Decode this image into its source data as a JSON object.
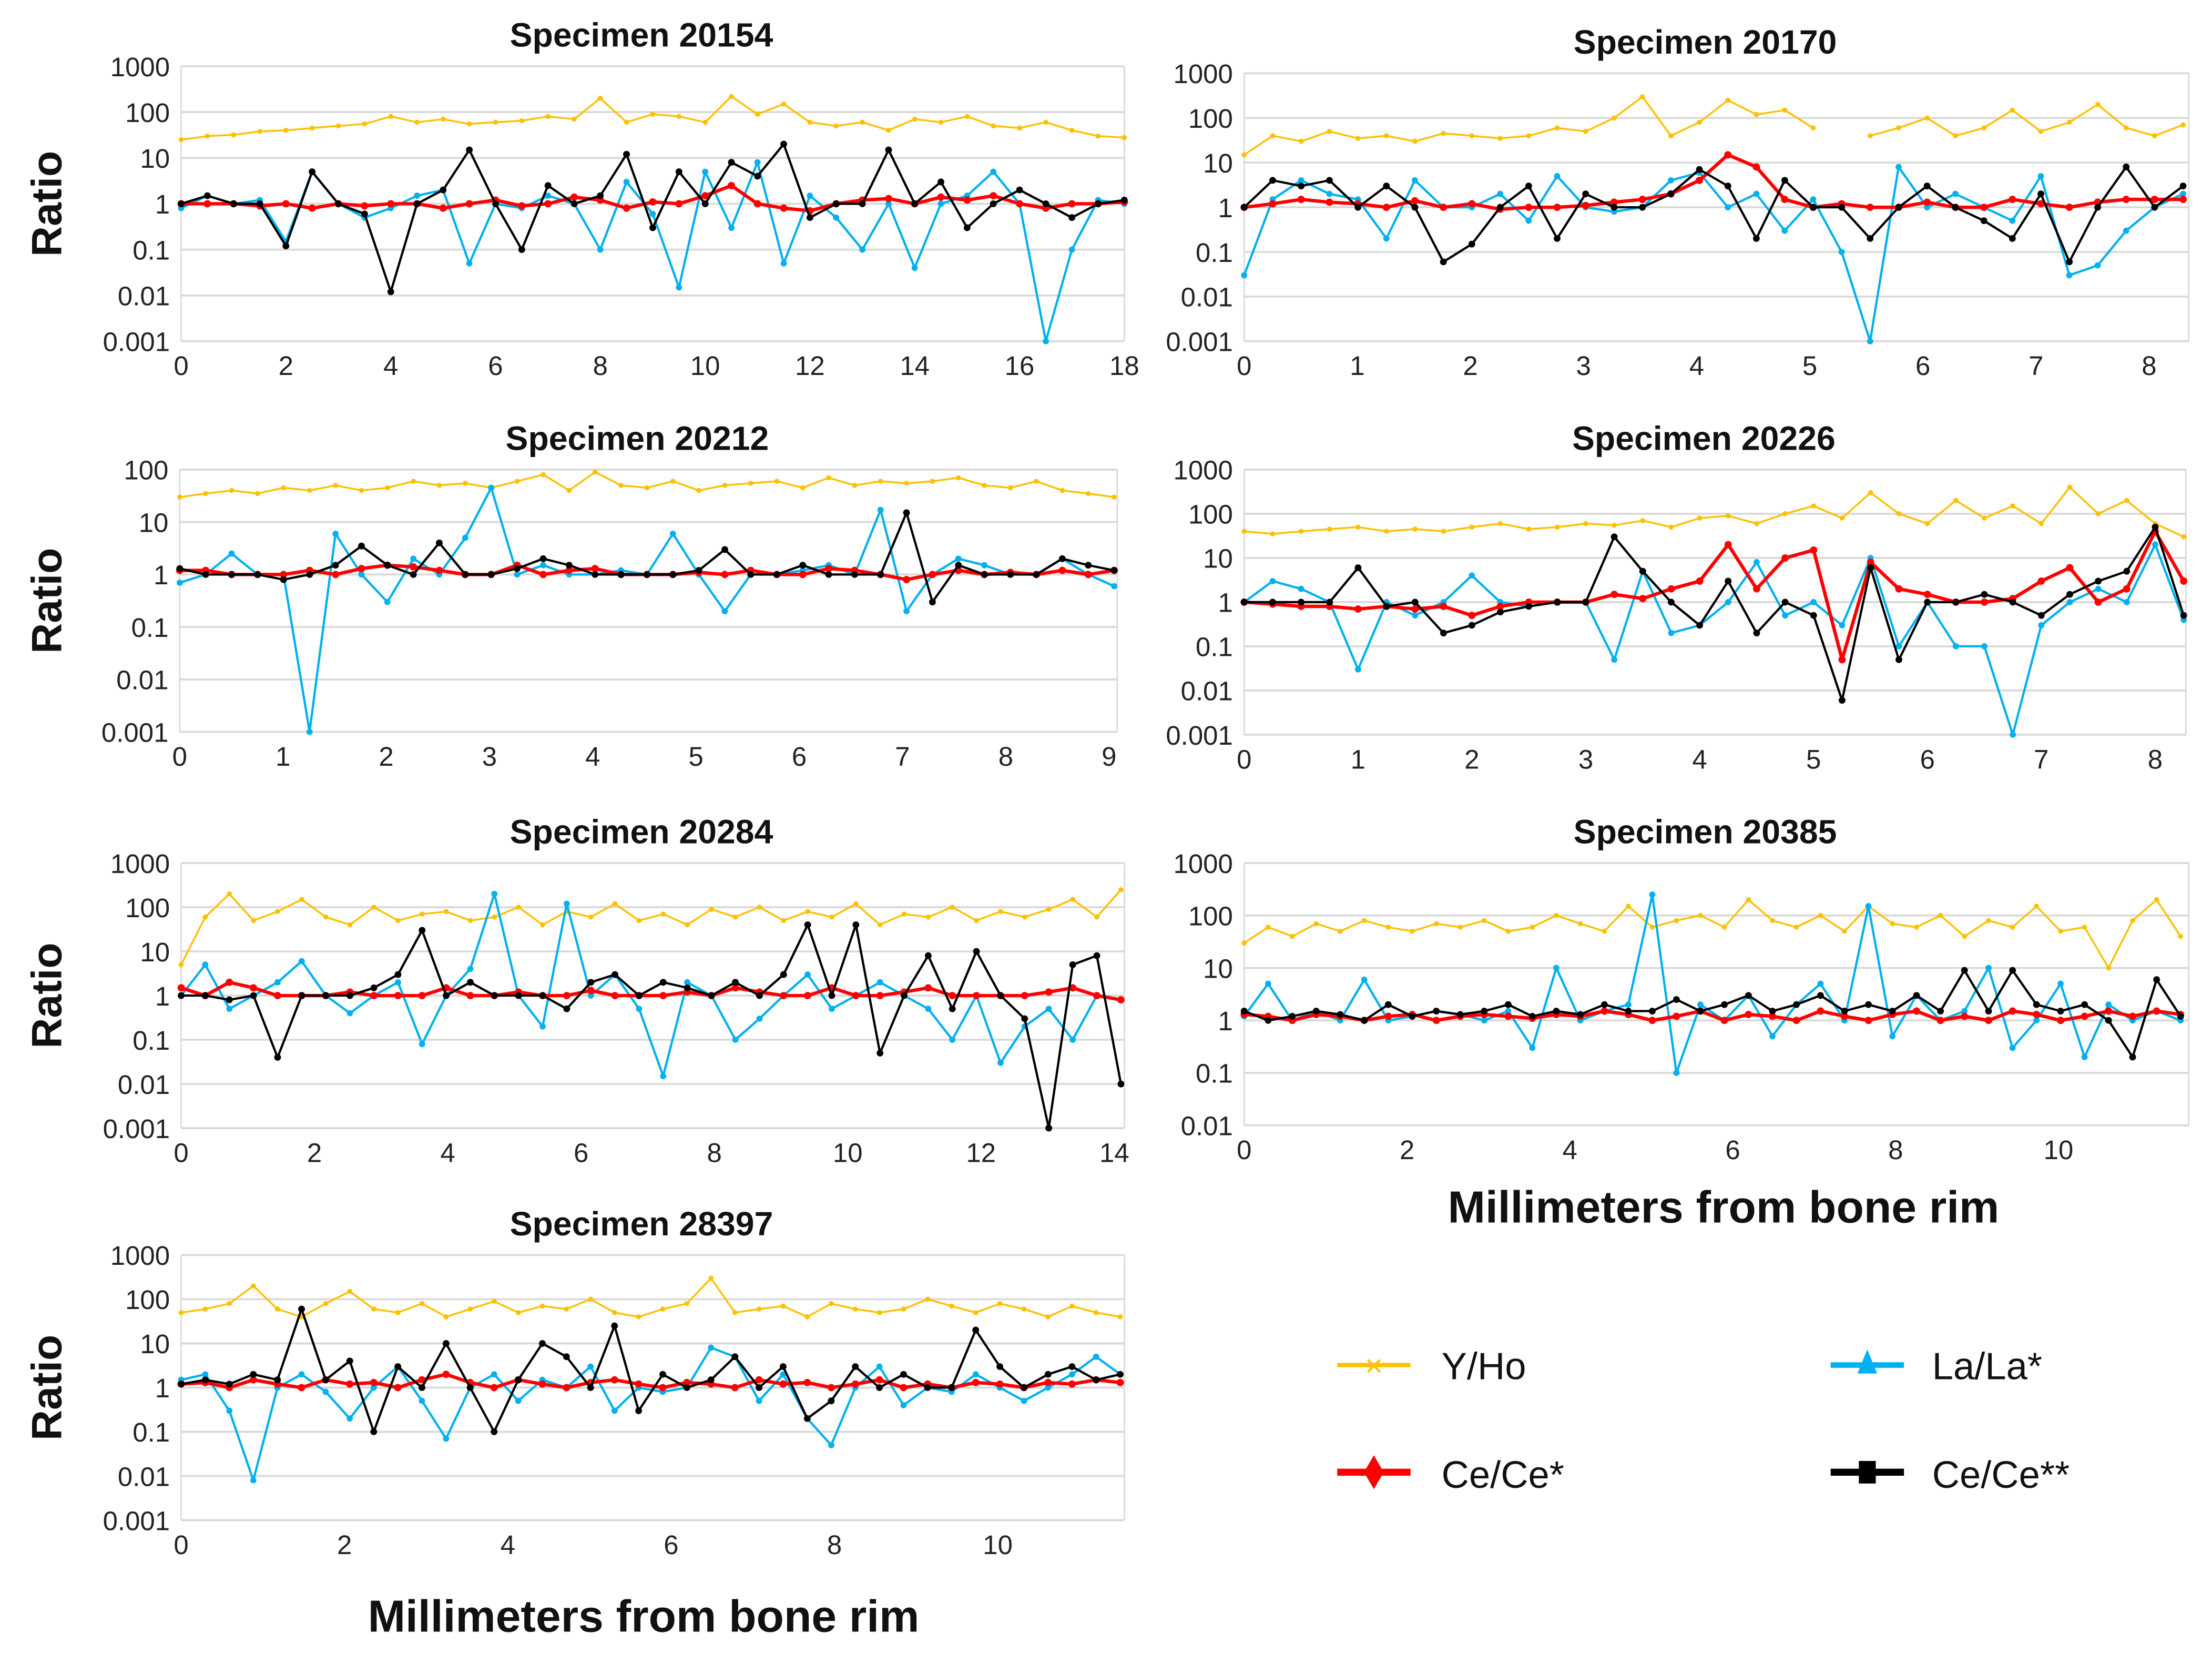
{
  "legend": {
    "yho": "Y/Ho",
    "la": "La/La*",
    "ce": "Ce/Ce*",
    "ce2": "Ce/Ce**"
  },
  "colors": {
    "yho": "#FFC000",
    "la": "#00B0F0",
    "ce": "#FF0000",
    "ce2": "#000000"
  },
  "x_axis_label": "Millimeters from bone rim",
  "y_axis_label": "Ratio",
  "chart_data": [
    {
      "type": "line",
      "title": "Specimen 20154",
      "ylabel": "Ratio",
      "yscale": "log",
      "ylim": [
        0.001,
        1000
      ],
      "xlim": [
        0,
        18
      ],
      "xticks": [
        0,
        2,
        4,
        6,
        8,
        10,
        12,
        14,
        16,
        18
      ],
      "yticks": [
        "0.001",
        "0.01",
        "0.1",
        "1",
        "10",
        "100",
        "1000"
      ],
      "x_end": 18,
      "series": {
        "yho": [
          25,
          30,
          32,
          38,
          40,
          45,
          50,
          55,
          80,
          60,
          70,
          55,
          60,
          65,
          80,
          70,
          200,
          60,
          90,
          80,
          60,
          220,
          90,
          150,
          60,
          50,
          60,
          40,
          70,
          60,
          80,
          50,
          45,
          60,
          40,
          30,
          28
        ],
        "la": [
          0.8,
          1.5,
          1,
          1.2,
          0.15,
          5,
          1,
          0.5,
          0.8,
          1.5,
          2,
          0.05,
          1,
          0.8,
          1.5,
          1,
          0.1,
          3,
          0.6,
          0.015,
          5,
          0.3,
          8,
          0.05,
          1.5,
          0.5,
          0.1,
          1,
          0.04,
          1,
          1.5,
          5,
          1,
          0.0003,
          0.1,
          1.2,
          1
        ],
        "ce": [
          1,
          1,
          1,
          0.9,
          1,
          0.8,
          1,
          0.9,
          1,
          1,
          0.8,
          1,
          1.2,
          0.9,
          1,
          1.4,
          1.2,
          0.8,
          1.1,
          1,
          1.5,
          2.5,
          1,
          0.8,
          0.7,
          1,
          1.2,
          1.3,
          1,
          1.4,
          1.2,
          1.5,
          1,
          0.8,
          1,
          1,
          1.1
        ],
        "ce2": [
          1,
          1.5,
          1,
          1,
          0.12,
          5,
          1,
          0.6,
          0.012,
          1,
          2,
          15,
          1,
          0.1,
          2.5,
          1,
          1.5,
          12,
          0.3,
          5,
          1,
          8,
          4,
          20,
          0.5,
          1,
          1,
          15,
          1,
          3,
          0.3,
          1,
          2,
          1,
          0.5,
          1,
          1.2
        ]
      }
    },
    {
      "type": "line",
      "title": "Specimen 20170",
      "ylabel": "",
      "yscale": "log",
      "ylim": [
        0.001,
        1000
      ],
      "xlim": [
        0,
        8.35
      ],
      "xticks": [
        0,
        1,
        2,
        3,
        4,
        5,
        6,
        7,
        8
      ],
      "yticks": [
        "0.001",
        "0.01",
        "0.1",
        "1",
        "10",
        "100",
        "1000"
      ],
      "x_end": 8.3,
      "series": {
        "yho": [
          15,
          40,
          30,
          50,
          35,
          40,
          30,
          45,
          40,
          35,
          40,
          60,
          50,
          100,
          300,
          40,
          80,
          250,
          120,
          150,
          60,
          null,
          40,
          60,
          100,
          40,
          60,
          150,
          50,
          80,
          200,
          60,
          40,
          70
        ],
        "la": [
          0.03,
          1.5,
          4,
          2,
          1.5,
          0.2,
          4,
          1,
          1,
          2,
          0.5,
          5,
          1,
          0.8,
          1,
          4,
          6,
          1,
          2,
          0.3,
          1.5,
          0.1,
          0.001,
          8,
          1,
          2,
          1,
          0.5,
          5,
          0.03,
          0.05,
          0.3,
          1,
          2
        ],
        "ce": [
          1,
          1.2,
          1.5,
          1.3,
          1.2,
          1,
          1.4,
          1,
          1.2,
          0.9,
          1,
          1,
          1.1,
          1.3,
          1.5,
          2,
          4,
          15,
          8,
          1.5,
          1,
          1.2,
          1,
          1,
          1.3,
          1,
          1,
          1.5,
          1.2,
          1,
          1.3,
          1.5,
          1.5,
          1.5
        ],
        "ce2": [
          1,
          4,
          3,
          4,
          1,
          3,
          1,
          0.06,
          0.15,
          1,
          3,
          0.2,
          2,
          1,
          1,
          2,
          7,
          3,
          0.2,
          4,
          1,
          1,
          0.2,
          1,
          3,
          1,
          0.5,
          0.2,
          2,
          0.06,
          1,
          8,
          1,
          3
        ]
      }
    },
    {
      "type": "line",
      "title": "Specimen 20212",
      "ylabel": "Ratio",
      "yscale": "log",
      "ylim": [
        0.001,
        100
      ],
      "xlim": [
        0,
        9.08
      ],
      "xticks": [
        0,
        1,
        2,
        3,
        4,
        5,
        6,
        7,
        8,
        9
      ],
      "yticks": [
        "0.001",
        "0.01",
        "0.1",
        "1",
        "10",
        "100"
      ],
      "x_end": 9.05,
      "series": {
        "yho": [
          30,
          35,
          40,
          35,
          45,
          40,
          50,
          40,
          45,
          60,
          50,
          55,
          45,
          60,
          80,
          40,
          90,
          50,
          45,
          60,
          40,
          50,
          55,
          60,
          45,
          70,
          50,
          60,
          55,
          60,
          70,
          50,
          45,
          60,
          40,
          35,
          30
        ],
        "la": [
          0.7,
          1,
          2.5,
          1,
          1,
          0.0002,
          6,
          1,
          0.3,
          2,
          1,
          5,
          45,
          1,
          1.5,
          1,
          1,
          1.2,
          1,
          6,
          1,
          0.2,
          1,
          1,
          1.2,
          1.5,
          1,
          17,
          0.2,
          1,
          2,
          1.5,
          1,
          1,
          2,
          1,
          0.6
        ],
        "ce": [
          1.2,
          1.2,
          1,
          1,
          1,
          1.2,
          1,
          1.3,
          1.5,
          1.4,
          1.2,
          1,
          1,
          1.5,
          1,
          1.2,
          1.3,
          1,
          1,
          1,
          1.1,
          1,
          1.2,
          1,
          1,
          1.3,
          1.2,
          1,
          0.8,
          1,
          1.2,
          1,
          1.1,
          1,
          1.2,
          1,
          1.2
        ],
        "ce2": [
          1.3,
          1,
          1,
          1,
          0.8,
          1,
          1.5,
          3.5,
          1.5,
          1,
          4,
          1,
          1,
          1.3,
          2,
          1.5,
          1,
          1,
          1,
          1,
          1.2,
          3,
          1,
          1,
          1.5,
          1,
          1,
          1,
          15,
          0.3,
          1.5,
          1,
          1,
          1,
          2,
          1.5,
          1.2
        ]
      }
    },
    {
      "type": "line",
      "title": "Specimen 20226",
      "ylabel": "",
      "yscale": "log",
      "ylim": [
        0.001,
        1000
      ],
      "xlim": [
        0,
        8.27
      ],
      "xticks": [
        0,
        1,
        2,
        3,
        4,
        5,
        6,
        7,
        8
      ],
      "yticks": [
        "0.001",
        "0.01",
        "0.1",
        "1",
        "10",
        "100",
        "1000"
      ],
      "x_end": 8.25,
      "series": {
        "yho": [
          40,
          35,
          40,
          45,
          50,
          40,
          45,
          40,
          50,
          60,
          45,
          50,
          60,
          55,
          70,
          50,
          80,
          90,
          60,
          100,
          150,
          80,
          300,
          100,
          60,
          200,
          80,
          150,
          60,
          400,
          100,
          200,
          60,
          30
        ],
        "la": [
          1,
          3,
          2,
          1,
          0.03,
          1,
          0.5,
          1,
          4,
          1,
          0.8,
          1,
          1,
          0.05,
          5,
          0.2,
          0.3,
          1,
          8,
          0.5,
          1,
          0.3,
          10,
          0.1,
          1,
          0.1,
          0.1,
          0.0003,
          0.3,
          1,
          2,
          1,
          20,
          0.4
        ],
        "ce": [
          1,
          0.9,
          0.8,
          0.8,
          0.7,
          0.8,
          0.7,
          0.8,
          0.5,
          0.8,
          1,
          1,
          1,
          1.5,
          1.2,
          2,
          3,
          20,
          2,
          10,
          15,
          0.05,
          8,
          2,
          1.5,
          1,
          1,
          1.2,
          3,
          6,
          1,
          2,
          40,
          3
        ],
        "ce2": [
          1,
          1,
          1,
          1,
          6,
          0.8,
          1,
          0.2,
          0.3,
          0.6,
          0.8,
          1,
          1,
          30,
          5,
          1,
          0.3,
          3,
          0.2,
          1,
          0.5,
          0.006,
          6,
          0.05,
          1,
          1,
          1.5,
          1,
          0.5,
          1.5,
          3,
          5,
          50,
          0.5
        ]
      }
    },
    {
      "type": "line",
      "title": "Specimen 20284",
      "ylabel": "Ratio",
      "yscale": "log",
      "ylim": [
        0.001,
        1000
      ],
      "xlim": [
        0,
        14.15
      ],
      "xticks": [
        0,
        2,
        4,
        6,
        8,
        10,
        12,
        14
      ],
      "yticks": [
        "0.001",
        "0.01",
        "0.1",
        "1",
        "10",
        "100",
        "1000"
      ],
      "x_end": 14.1,
      "series": {
        "yho": [
          5,
          60,
          200,
          50,
          80,
          150,
          60,
          40,
          100,
          50,
          70,
          80,
          50,
          60,
          100,
          40,
          80,
          60,
          120,
          50,
          70,
          40,
          90,
          60,
          100,
          50,
          80,
          60,
          120,
          40,
          70,
          60,
          100,
          50,
          80,
          60,
          90,
          150,
          60,
          250
        ],
        "la": [
          1,
          5,
          0.5,
          1,
          2,
          6,
          1,
          0.4,
          1,
          2,
          0.08,
          1,
          4,
          200,
          1,
          0.2,
          120,
          1,
          3,
          0.5,
          0.015,
          2,
          1,
          0.1,
          0.3,
          1,
          3,
          0.5,
          1,
          2,
          1,
          0.5,
          0.1,
          1,
          0.03,
          0.2,
          0.5,
          0.1,
          1,
          0.8
        ],
        "ce": [
          1.5,
          1,
          2,
          1.5,
          1,
          1,
          1,
          1.2,
          1,
          1,
          1,
          1.5,
          1,
          1,
          1.2,
          1,
          1,
          1.3,
          1,
          1,
          1,
          1.2,
          1,
          1.5,
          1.2,
          1,
          1,
          1.5,
          1,
          1,
          1.2,
          1.5,
          1,
          1,
          1,
          1,
          1.2,
          1.5,
          1,
          0.8
        ],
        "ce2": [
          1,
          1,
          0.8,
          1,
          0.04,
          1,
          1,
          1,
          1.5,
          3,
          30,
          1,
          2,
          1,
          1,
          1,
          0.5,
          2,
          3,
          1,
          2,
          1.5,
          1,
          2,
          1,
          3,
          40,
          1,
          40,
          0.05,
          1,
          8,
          0.5,
          10,
          1,
          0.3,
          0.0006,
          5,
          8,
          0.01
        ]
      }
    },
    {
      "type": "line",
      "title": "Specimen 20385",
      "ylabel": "",
      "yscale": "log",
      "ylim": [
        0.01,
        1000
      ],
      "xlim": [
        0,
        11.6
      ],
      "xticks": [
        0,
        2,
        4,
        6,
        8,
        10
      ],
      "yticks": [
        "0.01",
        "0.1",
        "1",
        "10",
        "100",
        "1000"
      ],
      "x_end": 11.5,
      "series": {
        "yho": [
          30,
          60,
          40,
          70,
          50,
          80,
          60,
          50,
          70,
          60,
          80,
          50,
          60,
          100,
          70,
          50,
          150,
          60,
          80,
          100,
          60,
          200,
          80,
          60,
          100,
          50,
          150,
          70,
          60,
          100,
          40,
          80,
          60,
          150,
          50,
          60,
          10,
          80,
          200,
          40
        ],
        "la": [
          1.2,
          5,
          1,
          1.5,
          1,
          6,
          1,
          1.2,
          1.5,
          1.3,
          1,
          1.5,
          0.3,
          10,
          1,
          1.5,
          2,
          250,
          0.1,
          2,
          1,
          3,
          0.5,
          2,
          5,
          1,
          150,
          0.5,
          3,
          1,
          1.5,
          10,
          0.3,
          1,
          5,
          0.2,
          2,
          1,
          1.5,
          1
        ],
        "ce": [
          1.3,
          1.2,
          1,
          1.3,
          1.2,
          1,
          1.2,
          1.3,
          1,
          1.2,
          1.3,
          1.2,
          1.1,
          1.3,
          1.2,
          1.5,
          1.3,
          1,
          1.2,
          1.5,
          1,
          1.3,
          1.2,
          1,
          1.5,
          1.2,
          1,
          1.3,
          1.5,
          1,
          1.2,
          1,
          1.5,
          1.3,
          1,
          1.2,
          1.5,
          1.2,
          1.5,
          1.3
        ],
        "ce2": [
          1.5,
          1,
          1.2,
          1.5,
          1.3,
          1,
          2,
          1.2,
          1.5,
          1.3,
          1.5,
          2,
          1.2,
          1.5,
          1.3,
          2,
          1.5,
          1.5,
          2.5,
          1.5,
          2,
          3,
          1.5,
          2,
          3,
          1.5,
          2,
          1.5,
          3,
          1.5,
          9,
          1.5,
          9,
          2,
          1.5,
          2,
          1,
          0.2,
          6,
          1.2
        ]
      }
    },
    {
      "type": "line",
      "title": "Specimen 28397",
      "ylabel": "Ratio",
      "yscale": "log",
      "ylim": [
        0.001,
        1000
      ],
      "xlim": [
        0,
        11.55
      ],
      "xticks": [
        0,
        2,
        4,
        6,
        8,
        10
      ],
      "yticks": [
        "0.001",
        "0.01",
        "0.1",
        "1",
        "10",
        "100",
        "1000"
      ],
      "x_end": 11.5,
      "series": {
        "yho": [
          50,
          60,
          80,
          200,
          60,
          40,
          80,
          150,
          60,
          50,
          80,
          40,
          60,
          90,
          50,
          70,
          60,
          100,
          50,
          40,
          60,
          80,
          300,
          50,
          60,
          70,
          40,
          80,
          60,
          50,
          60,
          100,
          70,
          50,
          80,
          60,
          40,
          70,
          50,
          40
        ],
        "la": [
          1.5,
          2,
          0.3,
          0.008,
          1,
          2,
          0.8,
          0.2,
          1,
          3,
          0.5,
          0.07,
          1,
          2,
          0.5,
          1.5,
          1,
          3,
          0.3,
          1,
          0.8,
          1,
          8,
          5,
          0.5,
          2,
          0.2,
          0.05,
          1,
          3,
          0.4,
          1,
          0.8,
          2,
          1,
          0.5,
          1,
          2,
          5,
          2
        ],
        "ce": [
          1.2,
          1.3,
          1,
          1.5,
          1.2,
          1,
          1.5,
          1.2,
          1.3,
          1,
          1.5,
          2,
          1.3,
          1,
          1.5,
          1.2,
          1,
          1.3,
          1.5,
          1.2,
          1,
          1.3,
          1.2,
          1,
          1.5,
          1.2,
          1.3,
          1,
          1.2,
          1.5,
          1,
          1.2,
          1,
          1.3,
          1.2,
          1,
          1.3,
          1.2,
          1.5,
          1.3
        ],
        "ce2": [
          1.2,
          1.5,
          1.2,
          2,
          1.5,
          60,
          1.5,
          4,
          0.1,
          3,
          1,
          10,
          1,
          0.1,
          1.5,
          10,
          5,
          1,
          25,
          0.3,
          2,
          1,
          1.5,
          5,
          1,
          3,
          0.2,
          0.5,
          3,
          1,
          2,
          1,
          1,
          20,
          3,
          1,
          2,
          3,
          1.5,
          2
        ]
      }
    }
  ]
}
